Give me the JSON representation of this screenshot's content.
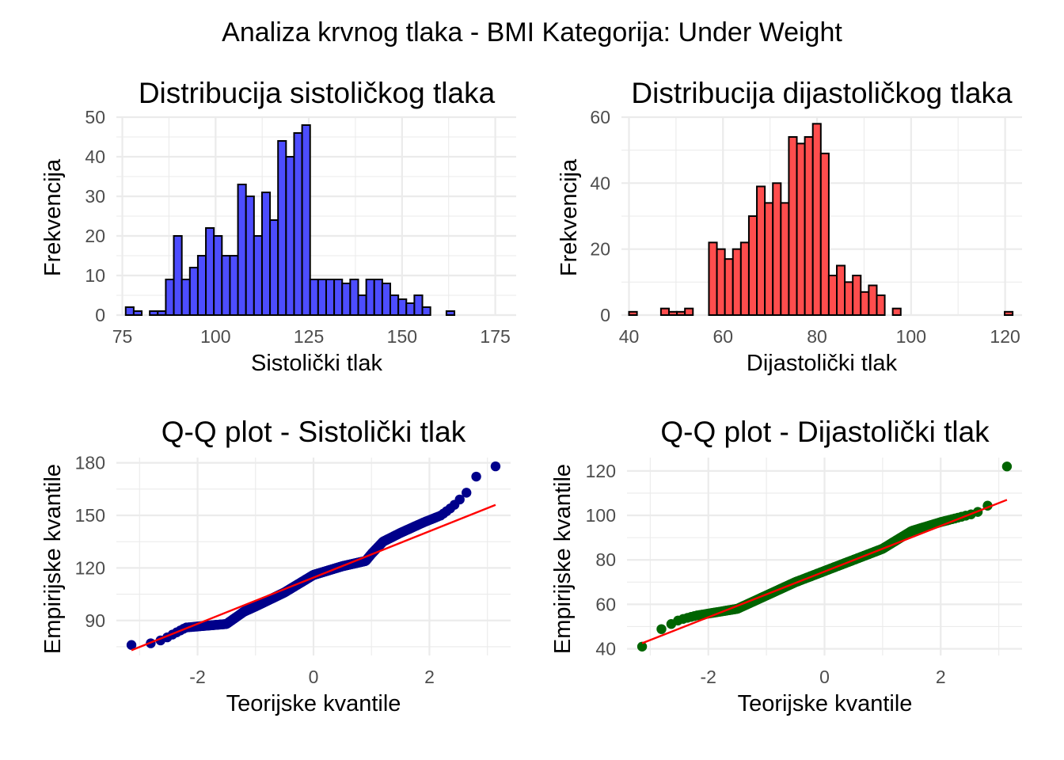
{
  "title": "Analiza krvnog tlaka - BMI Kategorija: Under Weight",
  "colors": {
    "hist_sys_fill": "#4d4dff",
    "hist_dia_fill": "#ff4d4d",
    "bar_outline": "#000000",
    "qq_sys_points": "#00008b",
    "qq_dia_points": "#006400",
    "qq_line": "#ff0000",
    "grid": "#ebebeb",
    "tick_text": "#4d4d4d"
  },
  "chart_data": [
    {
      "type": "bar",
      "title": "Distribucija sistoličkog tlaka",
      "xlabel": "Sistolički tlak",
      "ylabel": "Frekvencija",
      "xlim": [
        73.4,
        180.6
      ],
      "ylim": [
        0,
        50
      ],
      "x_ticks": [
        75,
        100,
        125,
        150,
        175
      ],
      "y_ticks": [
        0,
        10,
        20,
        30,
        40,
        50
      ],
      "grid": true,
      "bin_width": 2.15,
      "bin_start": 75.9,
      "values": [
        2,
        1,
        0,
        1,
        1,
        9,
        20,
        9,
        12,
        15,
        22,
        20,
        15,
        15,
        33,
        30,
        20,
        31,
        24,
        44,
        40,
        46,
        48,
        9,
        9,
        9,
        9,
        8,
        9,
        5,
        9,
        9,
        8,
        5,
        4,
        3,
        5,
        2,
        0,
        0,
        1,
        0,
        0,
        0,
        0,
        0,
        0,
        0,
        0
      ]
    },
    {
      "type": "bar",
      "title": "Distribucija dijastoličkog tlaka",
      "xlabel": "Dijastolički tlak",
      "ylabel": "Frekvencija",
      "xlim": [
        38.4,
        123.6
      ],
      "ylim": [
        0,
        60
      ],
      "x_ticks": [
        40,
        60,
        80,
        100,
        120
      ],
      "y_ticks": [
        0,
        20,
        40,
        60
      ],
      "grid": true,
      "bin_width": 1.7,
      "bin_start": 40.0,
      "values": [
        1,
        0,
        0,
        0,
        2,
        1,
        1,
        2,
        0,
        0,
        22,
        20,
        17,
        20,
        22,
        30,
        39,
        34,
        40,
        34,
        54,
        52,
        54,
        58,
        49,
        12,
        15,
        10,
        12,
        7,
        9,
        6,
        0,
        2,
        0,
        0,
        0,
        0,
        0,
        0,
        0,
        0,
        0,
        0,
        0,
        0,
        0,
        1
      ]
    },
    {
      "type": "scatter",
      "title": "Q-Q plot - Sistolički tlak",
      "xlabel": "Teorijske kvantile",
      "ylabel": "Empirijske kvantile",
      "xlim": [
        -3.4,
        3.4
      ],
      "ylim": [
        70,
        183
      ],
      "x_ticks": [
        -2,
        0,
        2
      ],
      "y_ticks": [
        90,
        120,
        150,
        180
      ],
      "grid": true,
      "n_points": 600,
      "quantile_knots": {
        "z": [
          -3.14,
          -2.8,
          -2.6,
          -2.2,
          -1.5,
          -1.2,
          -1.0,
          -0.5,
          0.0,
          0.5,
          0.9,
          1.0,
          1.2,
          1.5,
          1.9,
          2.05,
          2.2,
          2.4,
          2.7,
          2.85,
          3.14
        ],
        "y": [
          76,
          77,
          79,
          86,
          88,
          95,
          98,
          106,
          116,
          121,
          124,
          128,
          135,
          140,
          146,
          148,
          150,
          155,
          165,
          175,
          178
        ]
      },
      "reference_line": {
        "x": [
          -3.14,
          3.14
        ],
        "y": [
          73,
          156
        ]
      }
    },
    {
      "type": "scatter",
      "title": "Q-Q plot - Dijastolički tlak",
      "xlabel": "Teorijske kvantile",
      "ylabel": "Empirijske kvantile",
      "xlim": [
        -3.4,
        3.4
      ],
      "ylim": [
        37,
        126
      ],
      "x_ticks": [
        -2,
        0,
        2
      ],
      "y_ticks": [
        40,
        60,
        80,
        100,
        120
      ],
      "grid": true,
      "n_points": 600,
      "quantile_knots": {
        "z": [
          -3.14,
          -2.9,
          -2.8,
          -2.5,
          -2.2,
          -1.5,
          -1.0,
          -0.5,
          0.0,
          0.5,
          1.0,
          1.5,
          2.0,
          2.6,
          2.8,
          3.14
        ],
        "y": [
          41,
          47,
          49,
          53,
          55,
          58,
          64,
          70,
          75,
          80,
          85,
          93,
          97,
          101,
          104,
          122
        ]
      },
      "reference_line": {
        "x": [
          -3.14,
          3.14
        ],
        "y": [
          42.5,
          107
        ]
      }
    }
  ]
}
